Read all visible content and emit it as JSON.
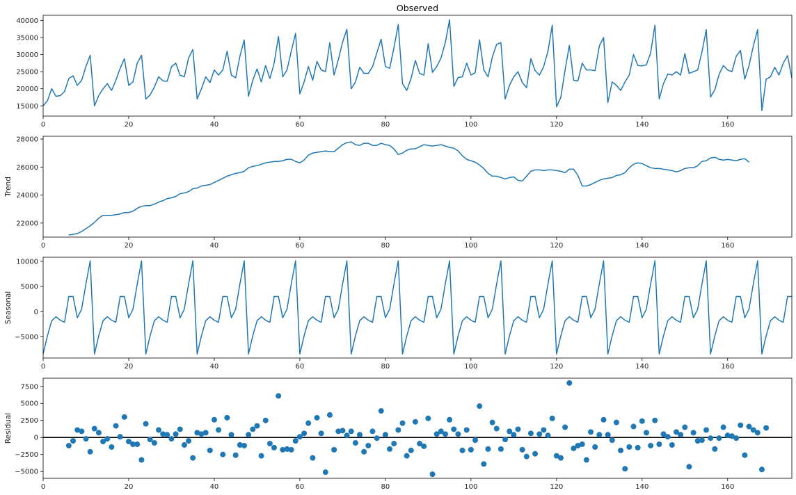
{
  "chart_data": [
    {
      "type": "line",
      "title": "Observed",
      "ylabel": "",
      "xlim": [
        0,
        175
      ],
      "ylim": [
        12000,
        41500
      ],
      "xticks": [
        0,
        20,
        40,
        60,
        80,
        100,
        120,
        140,
        160
      ],
      "yticks": [
        15000,
        20000,
        25000,
        30000,
        35000,
        40000
      ],
      "color": "#1f77b4",
      "x_start": 0,
      "values": [
        15000,
        16500,
        20000,
        17800,
        18000,
        19200,
        23000,
        23800,
        21000,
        22500,
        26500,
        29800,
        15000,
        18000,
        20000,
        21500,
        19500,
        22500,
        26000,
        28800,
        21000,
        22000,
        27500,
        29800,
        17000,
        18200,
        20500,
        23500,
        22300,
        22200,
        26500,
        27500,
        24000,
        23500,
        29000,
        31500,
        17000,
        20000,
        23500,
        21800,
        25500,
        24000,
        25500,
        31000,
        24000,
        23200,
        29500,
        34300,
        17800,
        22500,
        25800,
        22000,
        26800,
        23000,
        27500,
        35300,
        23500,
        25500,
        31000,
        36200,
        18500,
        22000,
        26500,
        22500,
        28000,
        25500,
        25000,
        33500,
        24000,
        28500,
        33700,
        37400,
        20000,
        22000,
        26300,
        24500,
        24500,
        26500,
        30500,
        34500,
        26500,
        26000,
        32000,
        38800,
        21500,
        19500,
        23000,
        28300,
        24500,
        24000,
        33200,
        24800,
        26500,
        29000,
        33500,
        40200,
        20700,
        23300,
        23500,
        27500,
        24000,
        24700,
        34300,
        25500,
        23500,
        29300,
        33000,
        33500,
        17000,
        21000,
        23500,
        25000,
        21800,
        20300,
        28800,
        25300,
        24000,
        26500,
        31000,
        38600,
        14700,
        17500,
        25500,
        32700,
        22500,
        22300,
        27500,
        25500,
        25500,
        25300,
        32500,
        35000,
        16000,
        22000,
        21000,
        19500,
        22000,
        24000,
        30000,
        26800,
        26700,
        27000,
        30500,
        38600,
        17000,
        21500,
        24300,
        24000,
        25000,
        24000,
        30300,
        24500,
        25000,
        25500,
        30800,
        37300,
        17600,
        19700,
        24200,
        26800,
        25500,
        25000,
        29500,
        31200,
        22800,
        26800,
        32500,
        37300,
        13600,
        22800,
        23500,
        26300,
        24000,
        27500,
        29700,
        23200
      ]
    },
    {
      "type": "line",
      "title": "",
      "ylabel": "Trend",
      "xlim": [
        0,
        175
      ],
      "ylim": [
        21000,
        28200
      ],
      "xticks": [
        0,
        20,
        40,
        60,
        80,
        100,
        120,
        140,
        160
      ],
      "yticks": [
        22000,
        24000,
        26000,
        28000
      ],
      "color": "#1f77b4",
      "x_start": 6,
      "values": [
        21150,
        21200,
        21250,
        21400,
        21600,
        21800,
        22050,
        22350,
        22550,
        22550,
        22550,
        22600,
        22650,
        22750,
        22750,
        22850,
        23050,
        23200,
        23250,
        23250,
        23350,
        23500,
        23600,
        23750,
        23800,
        23900,
        24100,
        24150,
        24250,
        24450,
        24500,
        24650,
        24700,
        24750,
        24900,
        25050,
        25200,
        25350,
        25450,
        25550,
        25600,
        25700,
        25950,
        26050,
        26100,
        26200,
        26300,
        26350,
        26400,
        26400,
        26450,
        26550,
        26550,
        26400,
        26300,
        26500,
        26850,
        27000,
        27050,
        27100,
        27150,
        27100,
        27100,
        27350,
        27600,
        27750,
        27800,
        27600,
        27550,
        27700,
        27700,
        27550,
        27550,
        27700,
        27600,
        27550,
        27300,
        26900,
        27000,
        27200,
        27300,
        27300,
        27450,
        27600,
        27550,
        27500,
        27550,
        27600,
        27500,
        27400,
        27350,
        27150,
        26800,
        26550,
        26450,
        26350,
        26150,
        25900,
        25550,
        25350,
        25350,
        25250,
        25150,
        25250,
        25300,
        25050,
        25000,
        25350,
        25700,
        25800,
        25800,
        25750,
        25800,
        25800,
        25750,
        25700,
        25600,
        25850,
        25850,
        25400,
        24650,
        24650,
        24750,
        24900,
        25050,
        25150,
        25200,
        25250,
        25400,
        25450,
        25600,
        25950,
        26200,
        26300,
        26250,
        26100,
        25950,
        25900,
        25900,
        25850,
        25800,
        25750,
        25650,
        25750,
        25900,
        25950,
        25950,
        26100,
        26400,
        26450,
        26650,
        26700,
        26550,
        26500,
        26550,
        26500,
        26450,
        26550,
        26600,
        26350
      ]
    },
    {
      "type": "line",
      "title": "",
      "ylabel": "Seasonal",
      "xlim": [
        0,
        175
      ],
      "ylim": [
        -9200,
        10800
      ],
      "xticks": [
        0,
        20,
        40,
        60,
        80,
        100,
        120,
        140,
        160
      ],
      "yticks": [
        -5000,
        0,
        5000,
        10000
      ],
      "color": "#1f77b4",
      "x_start": 0,
      "period": 12,
      "cycle": [
        -8400,
        -4800,
        -1800,
        -1000,
        -1700,
        -2100,
        3000,
        3000,
        -1200,
        500,
        5500,
        10100
      ],
      "values": [
        -8400,
        -4800,
        -1800,
        -1000,
        -1700,
        -2100,
        3000,
        3000,
        -1200,
        500,
        5500,
        10100,
        -8400,
        -4800,
        -1800,
        -1000,
        -1700,
        -2100,
        3000,
        3000,
        -1200,
        500,
        5500,
        10100,
        -8400,
        -4800,
        -1800,
        -1000,
        -1700,
        -2100,
        3000,
        3000,
        -1200,
        500,
        5500,
        10100,
        -8400,
        -4800,
        -1800,
        -1000,
        -1700,
        -2100,
        3000,
        3000,
        -1200,
        500,
        5500,
        10100,
        -8400,
        -4800,
        -1800,
        -1000,
        -1700,
        -2100,
        3000,
        3000,
        -1200,
        500,
        5500,
        10100,
        -8400,
        -4800,
        -1800,
        -1000,
        -1700,
        -2100,
        3000,
        3000,
        -1200,
        500,
        5500,
        10100,
        -8400,
        -4800,
        -1800,
        -1000,
        -1700,
        -2100,
        3000,
        3000,
        -1200,
        500,
        5500,
        10100,
        -8400,
        -4800,
        -1800,
        -1000,
        -1700,
        -2100,
        3000,
        3000,
        -1200,
        500,
        5500,
        10100,
        -8400,
        -4800,
        -1800,
        -1000,
        -1700,
        -2100,
        3000,
        3000,
        -1200,
        500,
        5500,
        10100,
        -8400,
        -4800,
        -1800,
        -1000,
        -1700,
        -2100,
        3000,
        3000,
        -1200,
        500,
        5500,
        10100,
        -8400,
        -4800,
        -1800,
        -1000,
        -1700,
        -2100,
        3000,
        3000,
        -1200,
        500,
        5500,
        10100,
        -8400,
        -4800,
        -1800,
        -1000,
        -1700,
        -2100,
        3000,
        3000,
        -1200,
        500,
        5500,
        10100,
        -8400,
        -4800,
        -1800,
        -1000,
        -1700,
        -2100,
        3000,
        3000,
        -1200,
        500,
        5500,
        10100,
        -8400,
        -4800,
        -1800,
        -1000,
        -1700,
        -2100,
        3000,
        3000,
        -1200,
        500,
        5500,
        10100,
        -8400,
        -4800,
        -1800,
        -1000,
        -1700,
        -2100,
        3000,
        3000
      ]
    },
    {
      "type": "scatter",
      "title": "",
      "ylabel": "Residual",
      "xlim": [
        0,
        175
      ],
      "ylim": [
        -6000,
        8700
      ],
      "xticks": [
        0,
        20,
        40,
        60,
        80,
        100,
        120,
        140,
        160
      ],
      "yticks": [
        -5000,
        -2500,
        0,
        2500,
        5000,
        7500
      ],
      "color": "#1f77b4",
      "hline": 0,
      "x_start": 6,
      "values": [
        -1200,
        -500,
        1100,
        900,
        -200,
        -2100,
        1300,
        700,
        -600,
        -200,
        -1400,
        1700,
        100,
        3000,
        -600,
        -1000,
        -1000,
        -3300,
        2000,
        -300,
        -800,
        1100,
        500,
        400,
        -200,
        500,
        1200,
        -1100,
        -500,
        -3000,
        700,
        500,
        700,
        -1900,
        2600,
        1100,
        -2500,
        2900,
        400,
        -2600,
        -1100,
        -1200,
        400,
        1200,
        1700,
        -2700,
        2500,
        -900,
        -1500,
        6100,
        -1800,
        -1700,
        -1800,
        -500,
        100,
        600,
        2100,
        -3000,
        2900,
        600,
        -5100,
        3300,
        -1800,
        900,
        1000,
        300,
        900,
        -800,
        400,
        -2100,
        -1200,
        900,
        -100,
        3900,
        400,
        -1700,
        -900,
        1100,
        2100,
        -2700,
        -1900,
        2300,
        -900,
        -1300,
        2800,
        -5400,
        500,
        900,
        500,
        2600,
        1200,
        500,
        -1900,
        1100,
        -1800,
        -400,
        4600,
        -3900,
        -1700,
        2200,
        1300,
        -1700,
        -300,
        900,
        400,
        1200,
        -1800,
        -2800,
        600,
        -2400,
        500,
        1100,
        300,
        2800,
        -2700,
        -3000,
        1500,
        8000,
        -1600,
        -1200,
        -1000,
        -3300,
        800,
        -1400,
        400,
        2600,
        400,
        -400,
        2200,
        -1900,
        -4600,
        -1400,
        1600,
        -1500,
        2400,
        700,
        -1200,
        2500,
        -1000,
        500,
        100,
        -1100,
        800,
        400,
        1500,
        -4300,
        700,
        -500,
        -400,
        1100,
        -100,
        -1700,
        -100,
        1500,
        300,
        200,
        -100,
        1800,
        -2600,
        1600,
        1100,
        700,
        -4700,
        1400
      ]
    }
  ]
}
